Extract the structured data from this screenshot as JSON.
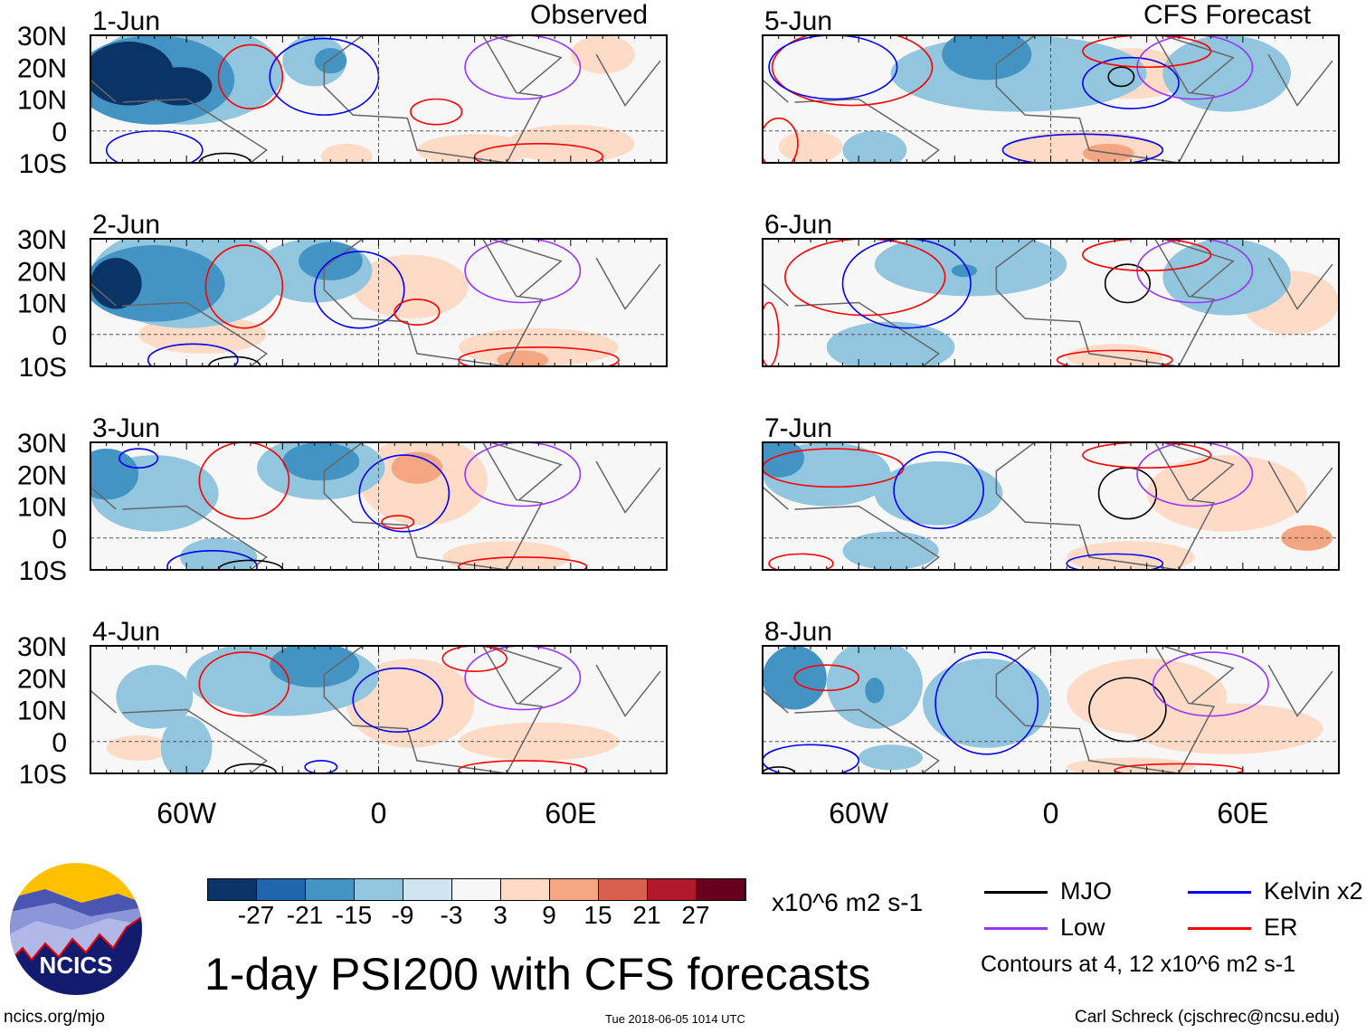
{
  "title": "1-day PSI200 with CFS forecasts",
  "column_labels": {
    "observed": "Observed",
    "forecast": "CFS Forecast"
  },
  "lat_ticks": [
    "30N",
    "20N",
    "10N",
    "0",
    "10S"
  ],
  "lon_ticks": [
    "60W",
    "0",
    "60E"
  ],
  "panels": {
    "left": [
      {
        "date": "1-Jun",
        "blobs": [
          [
            -78,
            18,
            14,
            10,
            -27
          ],
          [
            -62,
            14,
            10,
            6,
            -27
          ],
          [
            -70,
            16,
            25,
            14,
            -15
          ],
          [
            -60,
            18,
            30,
            16,
            -9
          ],
          [
            -20,
            22,
            10,
            8,
            -9
          ],
          [
            -15,
            22,
            5,
            4,
            -15
          ],
          [
            30,
            -6,
            18,
            5,
            3
          ],
          [
            60,
            -4,
            20,
            6,
            3
          ],
          [
            70,
            24,
            10,
            6,
            3
          ],
          [
            -10,
            -8,
            8,
            4,
            3
          ]
        ],
        "contours": [
          [
            -40,
            17,
            10,
            10,
            "#ff0000"
          ],
          [
            -17,
            17,
            17,
            12,
            "#0000ff"
          ],
          [
            18,
            6,
            8,
            4,
            "#ff0000"
          ],
          [
            45,
            20,
            18,
            10,
            "#9933ff"
          ],
          [
            50,
            -8,
            20,
            4,
            "#ff0000"
          ],
          [
            -70,
            -6,
            15,
            6,
            "#0000ff"
          ],
          [
            -48,
            -10,
            8,
            3,
            "#000000"
          ]
        ]
      },
      {
        "date": "2-Jun",
        "blobs": [
          [
            -82,
            16,
            8,
            8,
            -27
          ],
          [
            -70,
            16,
            22,
            12,
            -15
          ],
          [
            -60,
            18,
            30,
            16,
            -9
          ],
          [
            -15,
            23,
            10,
            6,
            -15
          ],
          [
            -20,
            20,
            18,
            10,
            -9
          ],
          [
            10,
            15,
            18,
            10,
            3
          ],
          [
            50,
            -4,
            25,
            6,
            3
          ],
          [
            45,
            -8,
            8,
            3,
            9
          ],
          [
            -55,
            0,
            20,
            6,
            3
          ]
        ],
        "contours": [
          [
            -42,
            15,
            12,
            13,
            "#ff0000"
          ],
          [
            -6,
            14,
            14,
            12,
            "#0000ff"
          ],
          [
            12,
            7,
            7,
            4,
            "#ff0000"
          ],
          [
            45,
            20,
            18,
            10,
            "#9933ff"
          ],
          [
            50,
            -8,
            25,
            4,
            "#ff0000"
          ],
          [
            -58,
            -8,
            14,
            5,
            "#0000ff"
          ],
          [
            -45,
            -10,
            8,
            3,
            "#000000"
          ]
        ]
      },
      {
        "date": "3-Jun",
        "blobs": [
          [
            -85,
            20,
            10,
            8,
            -15
          ],
          [
            -70,
            14,
            20,
            12,
            -9
          ],
          [
            -18,
            24,
            12,
            6,
            -15
          ],
          [
            -18,
            22,
            20,
            10,
            -9
          ],
          [
            14,
            18,
            20,
            14,
            3
          ],
          [
            12,
            22,
            8,
            5,
            9
          ],
          [
            -50,
            -6,
            12,
            6,
            -9
          ],
          [
            40,
            -6,
            20,
            5,
            3
          ]
        ],
        "contours": [
          [
            -42,
            18,
            14,
            12,
            "#ff0000"
          ],
          [
            8,
            14,
            14,
            12,
            "#0000ff"
          ],
          [
            -75,
            25,
            6,
            3,
            "#0000ff"
          ],
          [
            6,
            5,
            5,
            2,
            "#ff0000"
          ],
          [
            45,
            20,
            18,
            10,
            "#9933ff"
          ],
          [
            45,
            -9,
            20,
            3,
            "#ff0000"
          ],
          [
            -52,
            -9,
            14,
            5,
            "#0000ff"
          ],
          [
            -40,
            -10,
            10,
            3,
            "#000000"
          ]
        ]
      },
      {
        "date": "4-Jun",
        "blobs": [
          [
            -20,
            24,
            14,
            7,
            -15
          ],
          [
            -30,
            20,
            30,
            12,
            -9
          ],
          [
            -70,
            14,
            12,
            10,
            -9
          ],
          [
            -60,
            -2,
            8,
            10,
            -9
          ],
          [
            10,
            12,
            20,
            14,
            3
          ],
          [
            50,
            0,
            25,
            6,
            3
          ],
          [
            -75,
            -2,
            10,
            4,
            3
          ]
        ],
        "contours": [
          [
            -42,
            18,
            14,
            10,
            "#ff0000"
          ],
          [
            6,
            13,
            14,
            10,
            "#0000ff"
          ],
          [
            45,
            20,
            18,
            10,
            "#9933ff"
          ],
          [
            30,
            26,
            10,
            4,
            "#ff0000"
          ],
          [
            45,
            -9,
            20,
            3,
            "#ff0000"
          ],
          [
            -18,
            -8,
            5,
            2,
            "#0000ff"
          ],
          [
            -40,
            -10,
            8,
            3,
            "#000000"
          ]
        ]
      }
    ],
    "right": [
      {
        "date": "5-Jun",
        "blobs": [
          [
            -20,
            24,
            14,
            8,
            -15
          ],
          [
            -10,
            18,
            40,
            12,
            -9
          ],
          [
            55,
            18,
            20,
            12,
            -9
          ],
          [
            25,
            18,
            18,
            8,
            3
          ],
          [
            10,
            -6,
            25,
            6,
            3
          ],
          [
            18,
            -7,
            8,
            3,
            9
          ],
          [
            -55,
            -6,
            10,
            6,
            -9
          ],
          [
            -75,
            -5,
            10,
            5,
            3
          ]
        ],
        "contours": [
          [
            -62,
            20,
            25,
            12,
            "#ff0000"
          ],
          [
            -68,
            20,
            20,
            10,
            "#0000ff"
          ],
          [
            25,
            15,
            15,
            8,
            "#0000ff"
          ],
          [
            22,
            17,
            4,
            3,
            "#000000"
          ],
          [
            45,
            20,
            18,
            10,
            "#9933ff"
          ],
          [
            30,
            25,
            20,
            5,
            "#ff0000"
          ],
          [
            10,
            -6,
            25,
            5,
            "#0000ff"
          ],
          [
            -85,
            -4,
            6,
            8,
            "#ff0000"
          ]
        ]
      },
      {
        "date": "6-Jun",
        "blobs": [
          [
            -25,
            22,
            30,
            10,
            -9
          ],
          [
            -27,
            20,
            4,
            2,
            -15
          ],
          [
            55,
            18,
            20,
            12,
            -9
          ],
          [
            -50,
            -4,
            20,
            8,
            -9
          ],
          [
            20,
            -7,
            15,
            4,
            3
          ],
          [
            75,
            10,
            15,
            10,
            3
          ]
        ],
        "contours": [
          [
            -58,
            18,
            25,
            12,
            "#ff0000"
          ],
          [
            -45,
            16,
            20,
            14,
            "#0000ff"
          ],
          [
            24,
            16,
            7,
            6,
            "#000000"
          ],
          [
            45,
            20,
            18,
            10,
            "#9933ff"
          ],
          [
            30,
            25,
            20,
            5,
            "#ff0000"
          ],
          [
            20,
            -8,
            18,
            3,
            "#ff0000"
          ],
          [
            -88,
            0,
            3,
            10,
            "#ff0000"
          ]
        ]
      },
      {
        "date": "7-Jun",
        "blobs": [
          [
            -85,
            25,
            8,
            6,
            -15
          ],
          [
            -70,
            20,
            20,
            10,
            -9
          ],
          [
            -35,
            14,
            20,
            10,
            -9
          ],
          [
            -50,
            -4,
            15,
            6,
            -9
          ],
          [
            55,
            14,
            25,
            12,
            3
          ],
          [
            25,
            -6,
            20,
            5,
            3
          ],
          [
            80,
            0,
            8,
            4,
            9
          ]
        ],
        "contours": [
          [
            -68,
            22,
            22,
            6,
            "#ff0000"
          ],
          [
            -35,
            15,
            14,
            12,
            "#0000ff"
          ],
          [
            24,
            14,
            9,
            8,
            "#000000"
          ],
          [
            45,
            20,
            18,
            10,
            "#9933ff"
          ],
          [
            30,
            26,
            20,
            4,
            "#ff0000"
          ],
          [
            20,
            -8,
            15,
            3,
            "#0000ff"
          ],
          [
            -78,
            -8,
            10,
            3,
            "#ff0000"
          ]
        ]
      },
      {
        "date": "8-Jun",
        "blobs": [
          [
            -55,
            18,
            15,
            14,
            -9
          ],
          [
            -55,
            16,
            3,
            4,
            -15
          ],
          [
            -80,
            20,
            10,
            10,
            -15
          ],
          [
            -20,
            12,
            20,
            14,
            -9
          ],
          [
            30,
            14,
            25,
            12,
            3
          ],
          [
            55,
            4,
            30,
            8,
            3
          ],
          [
            -50,
            -5,
            10,
            4,
            -9
          ],
          [
            25,
            -8,
            20,
            3,
            3
          ]
        ],
        "contours": [
          [
            -20,
            12,
            16,
            16,
            "#0000ff"
          ],
          [
            24,
            10,
            12,
            10,
            "#000000"
          ],
          [
            50,
            18,
            18,
            10,
            "#9933ff"
          ],
          [
            -70,
            20,
            10,
            4,
            "#ff0000"
          ],
          [
            40,
            -9,
            20,
            2,
            "#ff0000"
          ],
          [
            -75,
            -6,
            15,
            5,
            "#0000ff"
          ],
          [
            -85,
            -10,
            5,
            2,
            "#000000"
          ]
        ]
      }
    ]
  },
  "colorbar": {
    "colors": [
      "#0b3466",
      "#2166ac",
      "#4393c3",
      "#92c5de",
      "#d1e5f0",
      "#f7f7f7",
      "#fddbc7",
      "#f4a582",
      "#d6604d",
      "#b2182b",
      "#67001f"
    ],
    "ticks": [
      "-27",
      "-21",
      "-15",
      "-9",
      "-3",
      "3",
      "9",
      "15",
      "21",
      "27"
    ],
    "units": "x10^6 m2 s-1"
  },
  "legend": {
    "items": [
      {
        "label": "MJO",
        "color": "#000000"
      },
      {
        "label": "Kelvin x2",
        "color": "#0000ff"
      },
      {
        "label": "Low",
        "color": "#9933ff"
      },
      {
        "label": "ER",
        "color": "#ff0000"
      }
    ],
    "note": "Contours at 4, 12 x10^6 m2 s-1"
  },
  "logo": {
    "text": "NCICS"
  },
  "footer": {
    "url": "ncics.org/mjo",
    "timestamp": "Tue 2018-06-05 1014 UTC",
    "credit": "Carl Schreck (cjschrec@ncsu.edu)"
  }
}
